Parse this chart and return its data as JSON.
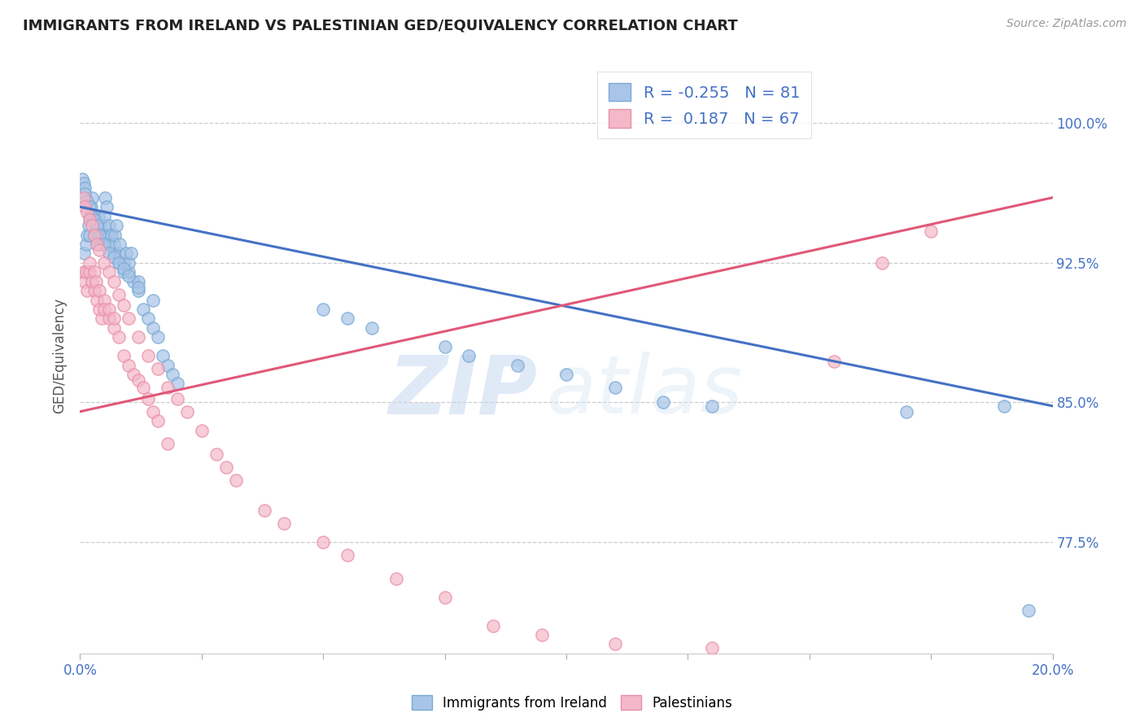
{
  "title": "IMMIGRANTS FROM IRELAND VS PALESTINIAN GED/EQUIVALENCY CORRELATION CHART",
  "source": "Source: ZipAtlas.com",
  "ylabel": "GED/Equivalency",
  "ytick_labels": [
    "100.0%",
    "92.5%",
    "85.0%",
    "77.5%"
  ],
  "ytick_values": [
    1.0,
    0.925,
    0.85,
    0.775
  ],
  "xlim": [
    0.0,
    0.2
  ],
  "ylim": [
    0.715,
    1.035
  ],
  "legend_R_ireland": "-0.255",
  "legend_N_ireland": "81",
  "legend_R_palestinian": "0.187",
  "legend_N_palestinian": "67",
  "ireland_color": "#a8c4e8",
  "palestinian_color": "#f4b8c8",
  "ireland_edge_color": "#7aaad4",
  "palestinian_edge_color": "#e890a8",
  "trendline_ireland_color": "#4472c4",
  "trendline_palestinian_color": "#e05878",
  "background_color": "#ffffff",
  "watermark_zip": "ZIP",
  "watermark_atlas": "atlas",
  "trendline_ire_x0": 0.0,
  "trendline_ire_y0": 0.955,
  "trendline_ire_x1": 0.2,
  "trendline_ire_y1": 0.848,
  "trendline_pal_x0": 0.0,
  "trendline_pal_y0": 0.845,
  "trendline_pal_x1": 0.2,
  "trendline_pal_y1": 0.96,
  "xtick_positions": [
    0.0,
    0.025,
    0.05,
    0.075,
    0.1,
    0.125,
    0.15,
    0.175,
    0.2
  ],
  "xtick_labels_show": [
    "0.0%",
    "",
    "",
    "",
    "",
    "",
    "",
    "",
    "20.0%"
  ],
  "ireland_x": [
    0.0008,
    0.0012,
    0.0015,
    0.0018,
    0.002,
    0.002,
    0.0022,
    0.0025,
    0.003,
    0.003,
    0.0032,
    0.0035,
    0.0038,
    0.004,
    0.004,
    0.0042,
    0.0045,
    0.005,
    0.005,
    0.005,
    0.0052,
    0.0055,
    0.006,
    0.006,
    0.0062,
    0.0065,
    0.007,
    0.007,
    0.0072,
    0.0075,
    0.008,
    0.008,
    0.0082,
    0.009,
    0.009,
    0.0095,
    0.01,
    0.01,
    0.0105,
    0.011,
    0.012,
    0.012,
    0.013,
    0.014,
    0.015,
    0.016,
    0.017,
    0.018,
    0.019,
    0.02,
    0.0005,
    0.0007,
    0.001,
    0.001,
    0.0015,
    0.002,
    0.0025,
    0.003,
    0.0035,
    0.004,
    0.005,
    0.006,
    0.007,
    0.008,
    0.009,
    0.01,
    0.012,
    0.015,
    0.05,
    0.055,
    0.06,
    0.075,
    0.08,
    0.09,
    0.1,
    0.11,
    0.12,
    0.13,
    0.17,
    0.19,
    0.195
  ],
  "ireland_y": [
    0.93,
    0.935,
    0.94,
    0.945,
    0.94,
    0.95,
    0.955,
    0.96,
    0.94,
    0.95,
    0.945,
    0.935,
    0.95,
    0.94,
    0.945,
    0.935,
    0.94,
    0.94,
    0.945,
    0.95,
    0.96,
    0.955,
    0.94,
    0.945,
    0.935,
    0.94,
    0.93,
    0.935,
    0.94,
    0.945,
    0.925,
    0.93,
    0.935,
    0.92,
    0.925,
    0.93,
    0.92,
    0.925,
    0.93,
    0.915,
    0.91,
    0.915,
    0.9,
    0.895,
    0.89,
    0.885,
    0.875,
    0.87,
    0.865,
    0.86,
    0.97,
    0.968,
    0.965,
    0.962,
    0.958,
    0.955,
    0.95,
    0.948,
    0.945,
    0.94,
    0.935,
    0.93,
    0.928,
    0.925,
    0.922,
    0.918,
    0.912,
    0.905,
    0.9,
    0.895,
    0.89,
    0.88,
    0.875,
    0.87,
    0.865,
    0.858,
    0.85,
    0.848,
    0.845,
    0.848,
    0.738
  ],
  "palestinian_x": [
    0.0008,
    0.001,
    0.0012,
    0.0015,
    0.002,
    0.002,
    0.0025,
    0.003,
    0.003,
    0.0032,
    0.0035,
    0.004,
    0.004,
    0.0045,
    0.005,
    0.005,
    0.006,
    0.006,
    0.007,
    0.007,
    0.008,
    0.009,
    0.01,
    0.011,
    0.012,
    0.013,
    0.014,
    0.015,
    0.016,
    0.018,
    0.0007,
    0.001,
    0.0015,
    0.002,
    0.0025,
    0.003,
    0.0035,
    0.004,
    0.005,
    0.006,
    0.007,
    0.008,
    0.009,
    0.01,
    0.012,
    0.014,
    0.016,
    0.018,
    0.02,
    0.022,
    0.025,
    0.028,
    0.03,
    0.032,
    0.038,
    0.042,
    0.05,
    0.055,
    0.065,
    0.075,
    0.085,
    0.095,
    0.11,
    0.13,
    0.155,
    0.165,
    0.175
  ],
  "palestinian_y": [
    0.92,
    0.915,
    0.92,
    0.91,
    0.92,
    0.925,
    0.915,
    0.91,
    0.92,
    0.915,
    0.905,
    0.9,
    0.91,
    0.895,
    0.905,
    0.9,
    0.895,
    0.9,
    0.89,
    0.895,
    0.885,
    0.875,
    0.87,
    0.865,
    0.862,
    0.858,
    0.852,
    0.845,
    0.84,
    0.828,
    0.96,
    0.955,
    0.952,
    0.948,
    0.945,
    0.94,
    0.935,
    0.932,
    0.925,
    0.92,
    0.915,
    0.908,
    0.902,
    0.895,
    0.885,
    0.875,
    0.868,
    0.858,
    0.852,
    0.845,
    0.835,
    0.822,
    0.815,
    0.808,
    0.792,
    0.785,
    0.775,
    0.768,
    0.755,
    0.745,
    0.73,
    0.725,
    0.72,
    0.718,
    0.872,
    0.925,
    0.942
  ]
}
